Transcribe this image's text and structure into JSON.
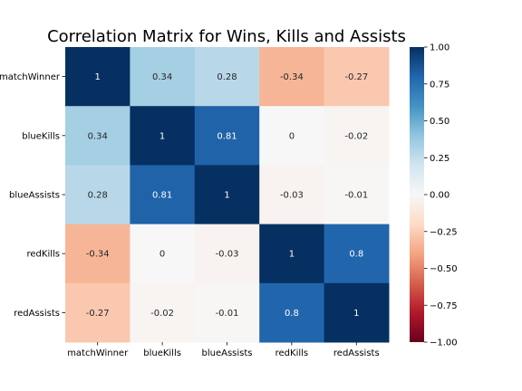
{
  "chart_data": {
    "type": "heatmap",
    "title": "Correlation Matrix for Wins, Kills and Assists",
    "xlabel": "",
    "ylabel": "",
    "row_labels": [
      "matchWinner",
      "blueKills",
      "blueAssists",
      "redKills",
      "redAssists"
    ],
    "col_labels": [
      "matchWinner",
      "blueKills",
      "blueAssists",
      "redKills",
      "redAssists"
    ],
    "values": [
      [
        1,
        0.34,
        0.28,
        -0.34,
        -0.27
      ],
      [
        0.34,
        1,
        0.81,
        0,
        -0.02
      ],
      [
        0.28,
        0.81,
        1,
        -0.03,
        -0.01
      ],
      [
        -0.34,
        0,
        -0.03,
        1,
        0.8
      ],
      [
        -0.27,
        -0.02,
        -0.01,
        0.8,
        1
      ]
    ],
    "colormap": "RdBu",
    "vmin": -1,
    "vmax": 1,
    "colorbar_ticks": [
      "1.00",
      "0.75",
      "0.50",
      "0.25",
      "0.00",
      "−0.25",
      "−0.50",
      "−0.75",
      "−1.00"
    ],
    "colormap_stops": [
      "#67001f",
      "#b2182b",
      "#d6604d",
      "#f4a582",
      "#fddbc7",
      "#f7f7f7",
      "#d1e5f0",
      "#92c5de",
      "#4393c3",
      "#2166ac",
      "#053061"
    ]
  }
}
